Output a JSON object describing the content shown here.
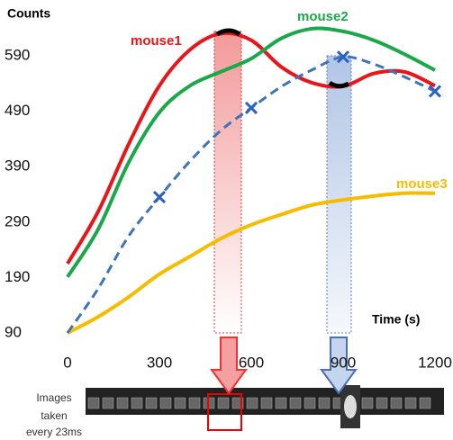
{
  "chart_data": {
    "type": "line",
    "y_label": "Counts",
    "x_label": "Time (s)",
    "x": [
      0,
      100,
      200,
      300,
      400,
      500,
      600,
      700,
      800,
      900,
      1000,
      1100,
      1200
    ],
    "series": [
      {
        "name": "mouse1",
        "color": "#e8151b",
        "values": [
          215,
          309,
          431,
          536,
          601,
          630,
          618,
          569,
          541,
          535,
          558,
          561,
          536
        ]
      },
      {
        "name": "mouse2",
        "color": "#1aa84a",
        "values": [
          191,
          277,
          398,
          488,
          536,
          561,
          585,
          622,
          639,
          634,
          618,
          593,
          564
        ]
      },
      {
        "name": "mouse3",
        "color": "#f7bb00",
        "values": [
          90,
          119,
          155,
          196,
          228,
          260,
          285,
          304,
          321,
          330,
          337,
          342,
          342
        ]
      }
    ],
    "fit": {
      "color": "#3e73b8",
      "values": [
        90,
        170,
        265,
        335,
        400,
        455,
        496,
        535,
        565,
        588,
        575,
        552,
        526
      ]
    },
    "xlim": [
      0,
      1200
    ],
    "ylim": [
      90,
      590
    ],
    "xticks": [
      0,
      300,
      600,
      900,
      1200
    ],
    "yticks": [
      90,
      190,
      290,
      390,
      490,
      590
    ],
    "caption": [
      "Images",
      "taken",
      "every 23ms"
    ]
  }
}
